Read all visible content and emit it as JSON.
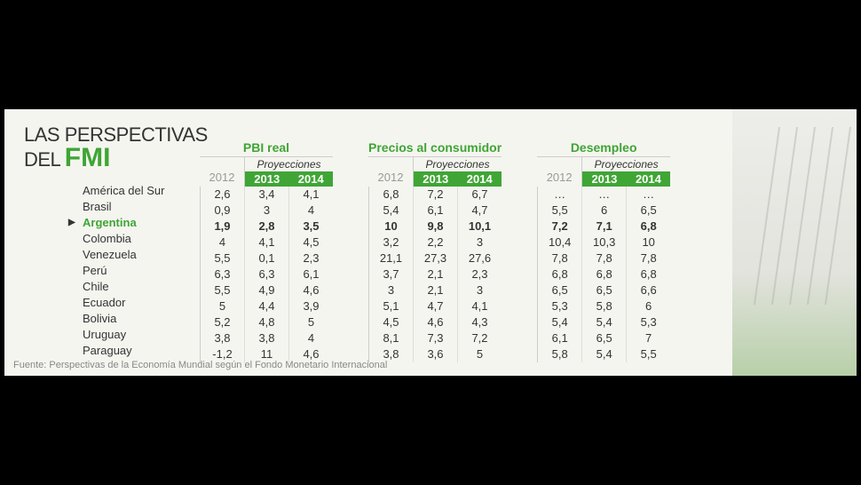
{
  "title": {
    "line1": "LAS PERSPECTIVAS",
    "line2": "DEL",
    "emphasis": "FMI"
  },
  "colors": {
    "accent": "#3fa535",
    "panel_bg": "#f5f5f0",
    "text": "#333333",
    "muted": "#999999",
    "border": "#cccccc",
    "outer_bg": "#000000"
  },
  "typography": {
    "title_fontsize": 22,
    "emphasis_fontsize": 30,
    "group_title_fontsize": 14,
    "cell_fontsize": 13,
    "source_fontsize": 11
  },
  "projection_label": "Proyecciones",
  "year_base": "2012",
  "year_proj1": "2013",
  "year_proj2": "2014",
  "highlight_index": 2,
  "countries": [
    "América del Sur",
    "Brasil",
    "Argentina",
    "Colombia",
    "Venezuela",
    "Perú",
    "Chile",
    "Ecuador",
    "Bolivia",
    "Uruguay",
    "Paraguay"
  ],
  "groups": [
    {
      "title": "PBI real",
      "data": [
        [
          "2,6",
          "3,4",
          "4,1"
        ],
        [
          "0,9",
          "3",
          "4"
        ],
        [
          "1,9",
          "2,8",
          "3,5"
        ],
        [
          "4",
          "4,1",
          "4,5"
        ],
        [
          "5,5",
          "0,1",
          "2,3"
        ],
        [
          "6,3",
          "6,3",
          "6,1"
        ],
        [
          "5,5",
          "4,9",
          "4,6"
        ],
        [
          "5",
          "4,4",
          "3,9"
        ],
        [
          "5,2",
          "4,8",
          "5"
        ],
        [
          "3,8",
          "3,8",
          "4"
        ],
        [
          "-1,2",
          "11",
          "4,6"
        ]
      ]
    },
    {
      "title": "Precios al consumidor",
      "data": [
        [
          "6,8",
          "7,2",
          "6,7"
        ],
        [
          "5,4",
          "6,1",
          "4,7"
        ],
        [
          "10",
          "9,8",
          "10,1"
        ],
        [
          "3,2",
          "2,2",
          "3"
        ],
        [
          "21,1",
          "27,3",
          "27,6"
        ],
        [
          "3,7",
          "2,1",
          "2,3"
        ],
        [
          "3",
          "2,1",
          "3"
        ],
        [
          "5,1",
          "4,7",
          "4,1"
        ],
        [
          "4,5",
          "4,6",
          "4,3"
        ],
        [
          "8,1",
          "7,3",
          "7,2"
        ],
        [
          "3,8",
          "3,6",
          "5"
        ]
      ]
    },
    {
      "title": "Desempleo",
      "data": [
        [
          "…",
          "…",
          "…"
        ],
        [
          "5,5",
          "6",
          "6,5"
        ],
        [
          "7,2",
          "7,1",
          "6,8"
        ],
        [
          "10,4",
          "10,3",
          "10"
        ],
        [
          "7,8",
          "7,8",
          "7,8"
        ],
        [
          "6,8",
          "6,8",
          "6,8"
        ],
        [
          "6,5",
          "6,5",
          "6,6"
        ],
        [
          "5,3",
          "5,8",
          "6"
        ],
        [
          "5,4",
          "5,4",
          "5,3"
        ],
        [
          "6,1",
          "6,5",
          "7"
        ],
        [
          "5,8",
          "5,4",
          "5,5"
        ]
      ]
    }
  ],
  "source": "Fuente: Perspectivas de la Economía Mundial según el Fondo Monetario Internacional"
}
